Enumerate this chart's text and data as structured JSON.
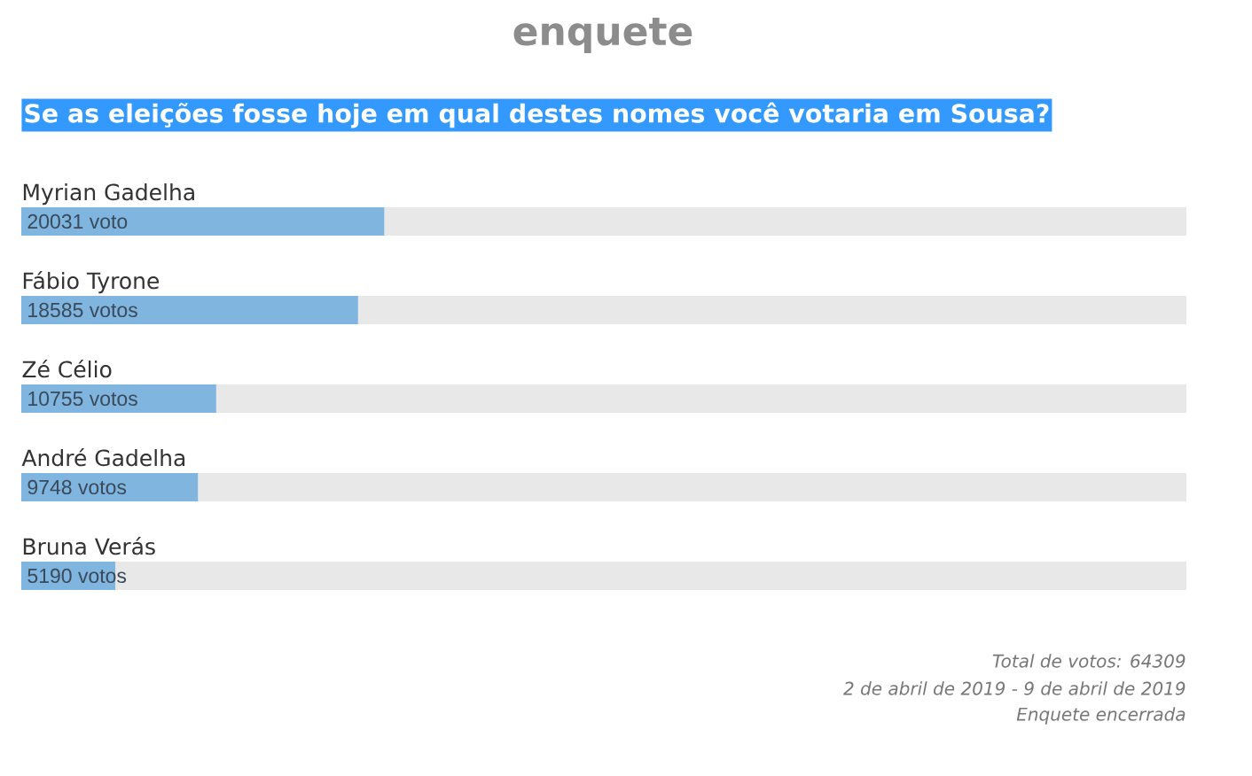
{
  "chart_data": {
    "type": "bar",
    "orientation": "horizontal",
    "title": "enquete",
    "subtitle": "Se as eleições fosse hoje em qual destes nomes você votaria em Sousa?",
    "categories": [
      "Myrian Gadelha",
      "Fábio Tyrone",
      "Zé Célio",
      "André Gadelha",
      "Bruna Verás"
    ],
    "values": [
      20031,
      18585,
      10755,
      9748,
      5190
    ],
    "value_labels": [
      "20031 voto",
      "18585 votos",
      "10755 votos",
      "9748 votos",
      "5190 votos"
    ],
    "color": "#7fb5de",
    "bands": [
      {
        "axis": "x",
        "from": 0,
        "to": 64309,
        "color": "#e8e8e8"
      }
    ],
    "xlim": [
      0,
      64309
    ],
    "tick_labels": "y",
    "annotations": [
      "Total de votos: 64309",
      "2 de abril de 2019 - 9 de abril de 2019",
      "Enquete encerrada"
    ]
  }
}
